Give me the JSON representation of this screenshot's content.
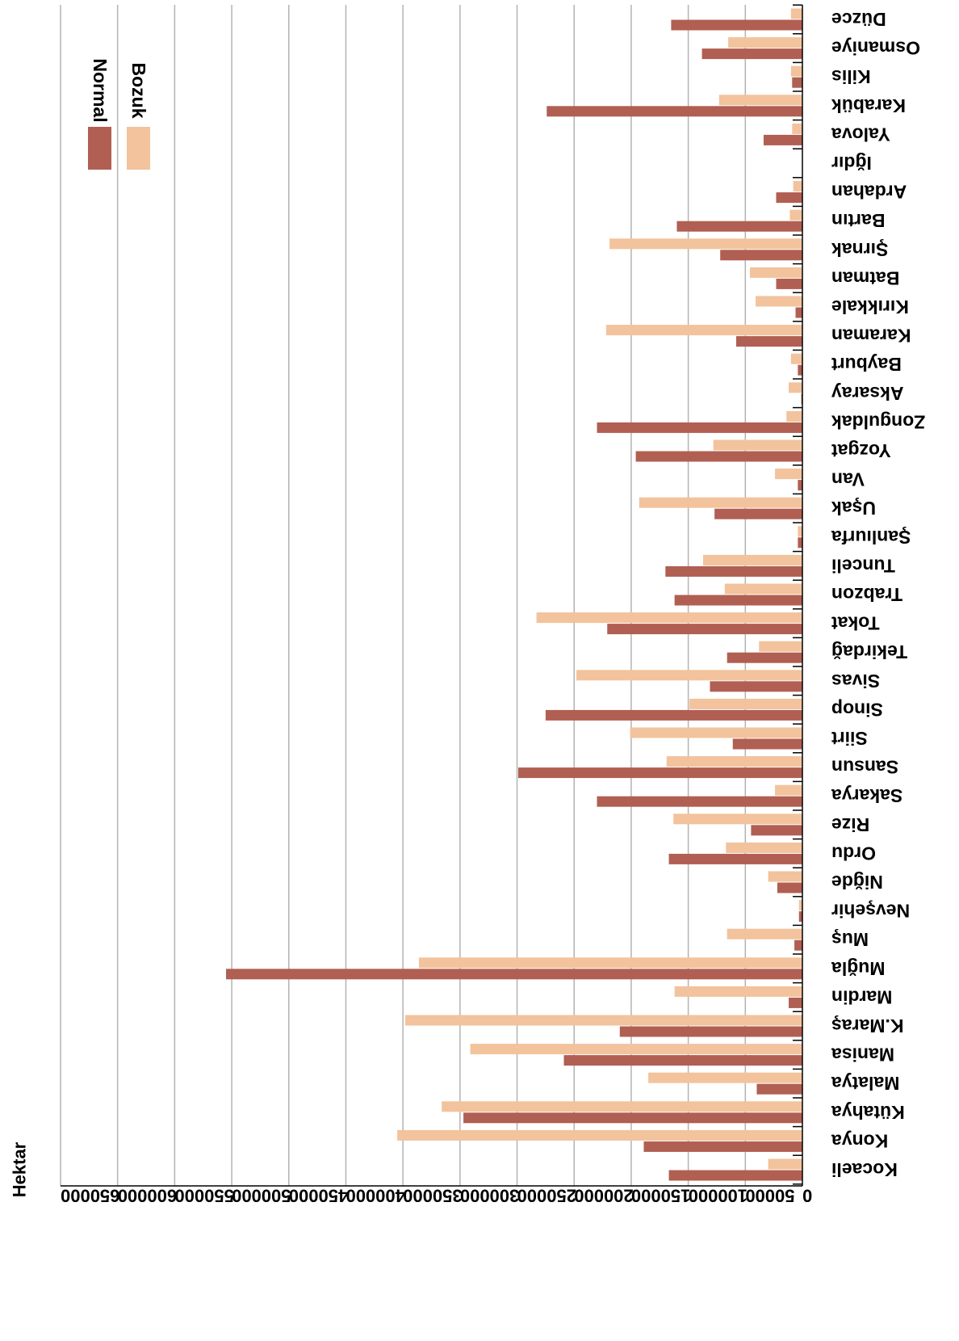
{
  "chart_data": {
    "type": "bar",
    "orientation": "horizontal",
    "rotated": "180deg",
    "ylabel": "Hektar",
    "xlim": [
      0,
      650000
    ],
    "tick_step": 50000,
    "ticks": [
      "0",
      "50000",
      "100000",
      "150000",
      "200000",
      "250000",
      "300000",
      "350000",
      "400000",
      "450000",
      "500000",
      "550000",
      "600000",
      "650000"
    ],
    "grid": true,
    "legend_position": "top-left (inverted)",
    "categories": [
      "Kocaeli",
      "Konya",
      "Kütahya",
      "Malatya",
      "Manisa",
      "K.Maraş",
      "Mardin",
      "Muğla",
      "Muş",
      "Nevşehir",
      "Niğde",
      "Ordu",
      "Rize",
      "Sakarya",
      "Sansun",
      "Siirt",
      "Sinop",
      "Sivas",
      "Tekirdağ",
      "Tokat",
      "Trabzon",
      "Tunceli",
      "Şanlıurfa",
      "Uşak",
      "Van",
      "Yozgat",
      "Zonguldak",
      "Aksaray",
      "Bayburt",
      "Karaman",
      "Kırıkkale",
      "Batman",
      "Şırnak",
      "Bartın",
      "Ardahan",
      "Iğdır",
      "Yalova",
      "Karabük",
      "Kilis",
      "Osmaniye",
      "Düzce"
    ],
    "series": [
      {
        "name": "Normal",
        "color": "#b05f52",
        "values": [
          117000,
          139000,
          297000,
          40000,
          209000,
          160000,
          12000,
          505000,
          7000,
          3000,
          22000,
          117000,
          45000,
          180000,
          249000,
          61000,
          225000,
          81000,
          66000,
          171000,
          112000,
          120000,
          4000,
          77000,
          4000,
          146000,
          180000,
          1000,
          4000,
          58000,
          6000,
          23000,
          72000,
          110000,
          23000,
          0,
          34000,
          224000,
          9000,
          88000,
          115000
        ]
      },
      {
        "name": "Bozuk",
        "color": "#f2c39c",
        "values": [
          30000,
          355000,
          316000,
          135000,
          291000,
          348000,
          112000,
          336000,
          66000,
          3000,
          30000,
          67000,
          113000,
          24000,
          119000,
          151000,
          99000,
          198000,
          38000,
          233000,
          68000,
          87000,
          4000,
          143000,
          24000,
          78000,
          14000,
          12000,
          10000,
          172000,
          41000,
          46000,
          169000,
          11000,
          8000,
          0,
          9000,
          73000,
          10000,
          65000,
          10000
        ]
      }
    ]
  }
}
